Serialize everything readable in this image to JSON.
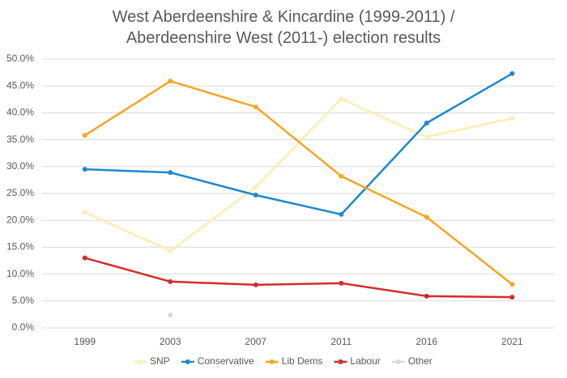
{
  "chart_data": {
    "type": "line",
    "title": "West Aberdeenshire & Kincardine (1999-2011) / Aberdeenshire West (2011-) election results",
    "categories": [
      "1999",
      "2003",
      "2007",
      "2011",
      "2016",
      "2021"
    ],
    "series": [
      {
        "name": "SNP",
        "color": "#fbeeb0",
        "values": [
          21.5,
          14.3,
          26.2,
          42.6,
          35.5,
          39.0
        ]
      },
      {
        "name": "Conservative",
        "color": "#1f88cf",
        "values": [
          29.5,
          28.9,
          24.7,
          21.1,
          38.1,
          47.3
        ]
      },
      {
        "name": "Lib Dems",
        "color": "#f5a623",
        "values": [
          35.8,
          45.9,
          41.1,
          28.2,
          20.6,
          8.1
        ]
      },
      {
        "name": "Labour",
        "color": "#d62b2b",
        "values": [
          13.0,
          8.6,
          8.0,
          8.3,
          5.9,
          5.7
        ]
      },
      {
        "name": "Other",
        "color": "#d9d9d9",
        "values": [
          null,
          2.4,
          null,
          null,
          null,
          null
        ]
      }
    ],
    "ylim": [
      0,
      50
    ],
    "yticks": [
      {
        "value": 0,
        "label": "0.0%"
      },
      {
        "value": 5,
        "label": "5.0%"
      },
      {
        "value": 10,
        "label": "10.0%"
      },
      {
        "value": 15,
        "label": "15.0%"
      },
      {
        "value": 20,
        "label": "20.0%"
      },
      {
        "value": 25,
        "label": "25.0%"
      },
      {
        "value": 30,
        "label": "30.0%"
      },
      {
        "value": 35,
        "label": "35.0%"
      },
      {
        "value": 40,
        "label": "40.0%"
      },
      {
        "value": 45,
        "label": "45.0%"
      },
      {
        "value": 50,
        "label": "50.0%"
      }
    ],
    "grid": true,
    "legend": "bottom"
  }
}
